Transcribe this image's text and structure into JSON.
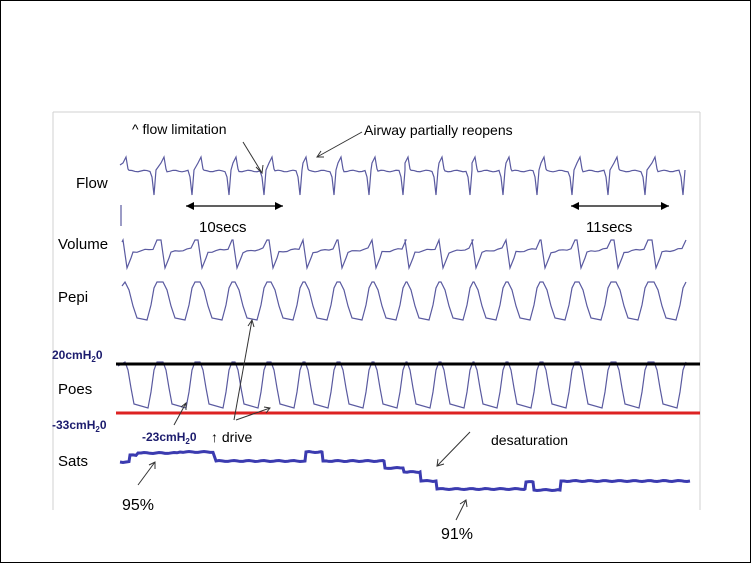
{
  "chart_data": {
    "type": "line",
    "channels": [
      {
        "name": "Flow",
        "color": "#5a5aa0"
      },
      {
        "name": "Volume",
        "color": "#5a5aa0"
      },
      {
        "name": "Pepi",
        "color": "#5a5aa0"
      },
      {
        "name": "Poes",
        "color": "#5a5aa0"
      },
      {
        "name": "Sats",
        "color": "#3b3bb0"
      }
    ],
    "reference_lines": [
      {
        "label_main": "20cmH",
        "label_sub": "2",
        "label_end": "0",
        "color": "#000000"
      },
      {
        "label_main": "-33cmH",
        "label_sub": "2",
        "label_end": "0",
        "color": "#dd2222"
      }
    ],
    "annotations": {
      "flow_limitation": "^ flow limitation",
      "airway_reopens": "Airway partially reopens",
      "interval_1": "10secs",
      "interval_2": "11secs",
      "poes_marker_main": "-23cmH",
      "poes_marker_sub": "2",
      "poes_marker_end": "0",
      "drive": "↑ drive",
      "desaturation": "desaturation",
      "sat_start": "95%",
      "sat_low": "91%"
    },
    "sats_values_percent": [
      95,
      91
    ]
  }
}
